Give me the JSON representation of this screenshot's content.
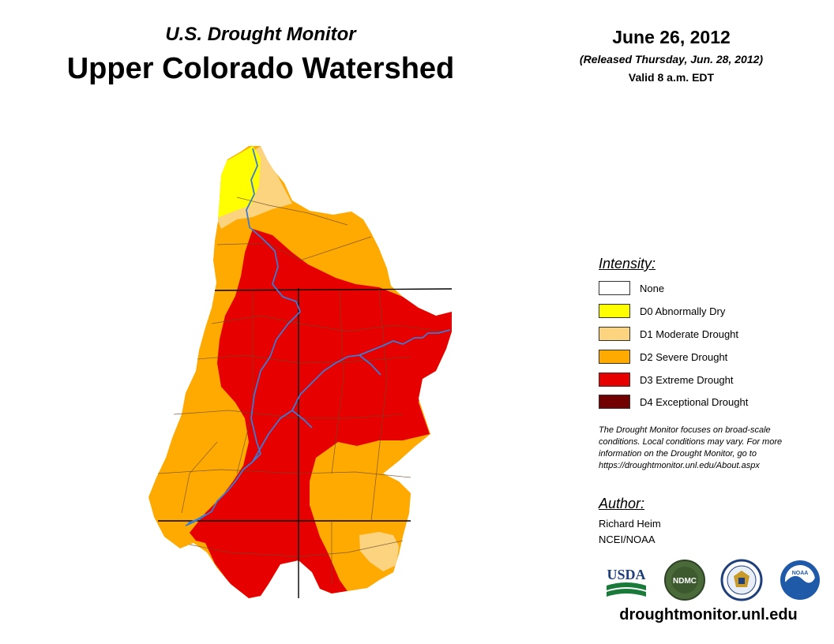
{
  "header": {
    "subtitle": "U.S. Drought Monitor",
    "title": "Upper Colorado Watershed",
    "date": "June 26, 2012",
    "released": "(Released Thursday, Jun. 28, 2012)",
    "valid": "Valid 8 a.m. EDT"
  },
  "legend": {
    "title": "Intensity:",
    "items": [
      {
        "label": "None",
        "color": "#ffffff"
      },
      {
        "label": "D0 Abnormally Dry",
        "color": "#ffff00"
      },
      {
        "label": "D1 Moderate Drought",
        "color": "#fcd37f"
      },
      {
        "label": "D2 Severe Drought",
        "color": "#ffaa00"
      },
      {
        "label": "D3 Extreme Drought",
        "color": "#e60000"
      },
      {
        "label": "D4 Exceptional Drought",
        "color": "#730000"
      }
    ]
  },
  "note": {
    "line1": "The Drought Monitor focuses on broad-scale",
    "line2": "conditions. Local conditions may vary. For more",
    "line3": "information on the Drought Monitor, go to",
    "line4": "https://droughtmonitor.unl.edu/About.aspx"
  },
  "author": {
    "title": "Author:",
    "name": "Richard Heim",
    "org": "NCEI/NOAA"
  },
  "logos": {
    "usda": "USDA",
    "ndmc": "NDMC",
    "noaa": "NOAA"
  },
  "footer": {
    "url": "droughtmonitor.unl.edu"
  },
  "colors": {
    "river": "#3a7bd5",
    "boundary": "#000000"
  }
}
